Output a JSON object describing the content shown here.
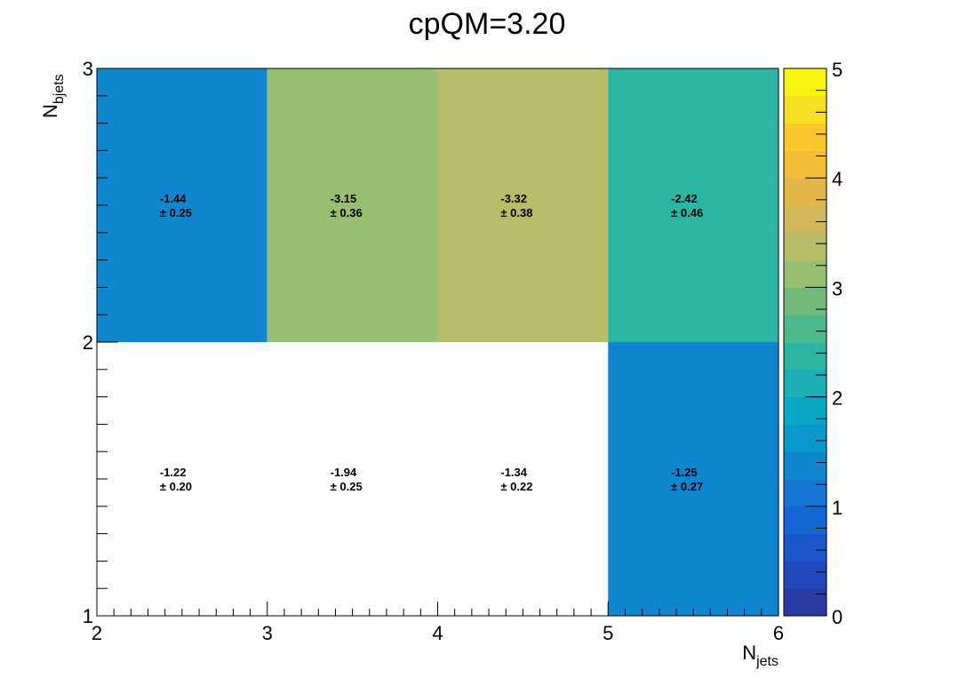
{
  "chart_data": {
    "type": "heatmap",
    "title": "cpQM=3.20",
    "xlabel": {
      "main": "N",
      "sub": "jets"
    },
    "ylabel": {
      "main": "N",
      "sub": "bjets"
    },
    "x_edges": [
      2,
      3,
      4,
      5,
      6
    ],
    "y_edges": [
      1,
      2,
      3
    ],
    "x_ticks": [
      "2",
      "3",
      "4",
      "5",
      "6"
    ],
    "y_ticks": [
      "1",
      "2",
      "3"
    ],
    "xlim": [
      2,
      6
    ],
    "ylim": [
      1,
      3
    ],
    "zlim": [
      0,
      5
    ],
    "z_ticks": [
      "0",
      "1",
      "2",
      "3",
      "4",
      "5"
    ],
    "cells": [
      {
        "x": 2.5,
        "y": 1.5,
        "label": "-1.22",
        "error": "± 0.20",
        "color_value": null
      },
      {
        "x": 3.5,
        "y": 1.5,
        "label": "-1.94",
        "error": "± 0.25",
        "color_value": null
      },
      {
        "x": 4.5,
        "y": 1.5,
        "label": "-1.34",
        "error": "± 0.22",
        "color_value": null
      },
      {
        "x": 5.5,
        "y": 1.5,
        "label": "-1.25",
        "error": "± 0.27",
        "color_value": 1.25
      },
      {
        "x": 2.5,
        "y": 2.5,
        "label": "-1.44",
        "error": "± 0.25",
        "color_value": 1.44
      },
      {
        "x": 3.5,
        "y": 2.5,
        "label": "-3.15",
        "error": "± 0.36",
        "color_value": 3.15
      },
      {
        "x": 4.5,
        "y": 2.5,
        "label": "-3.32",
        "error": "± 0.38",
        "color_value": 3.32
      },
      {
        "x": 5.5,
        "y": 2.5,
        "label": "-2.42",
        "error": "± 0.46",
        "color_value": 2.42
      }
    ],
    "palette": [
      "#2a3aa6",
      "#2347bd",
      "#1a56cc",
      "#1466d4",
      "#1576d4",
      "#1186d0",
      "#0b98cd",
      "#09a7c6",
      "#1cafb6",
      "#2bb5a2",
      "#4cba8c",
      "#74bb7b",
      "#98be72",
      "#b6bd66",
      "#d0b759",
      "#e3b649",
      "#f2be38",
      "#f9c92c",
      "#f6de22",
      "#f7f20e"
    ],
    "legend": "none",
    "grid": false
  }
}
